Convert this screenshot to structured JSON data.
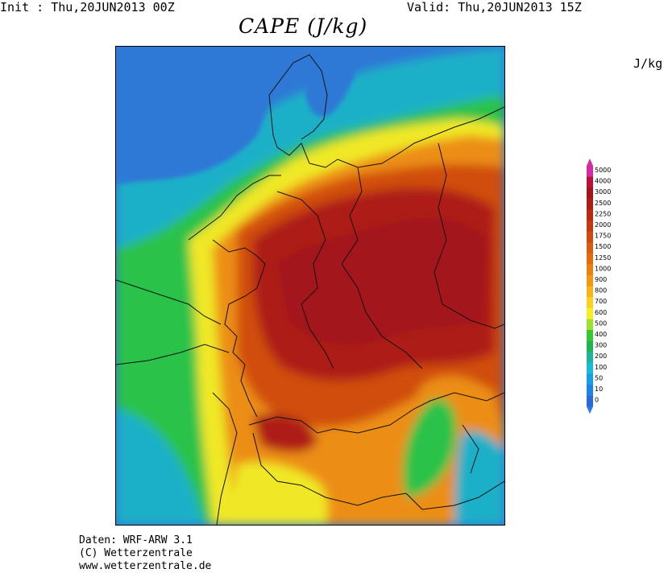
{
  "header": {
    "init": "Init : Thu,20JUN2013 00Z",
    "valid": "Valid: Thu,20JUN2013 15Z",
    "title": "CAPE (J/kg)"
  },
  "legend": {
    "unit": "J/kg",
    "levels": [
      "5000",
      "4000",
      "3000",
      "2500",
      "2250",
      "2000",
      "1750",
      "1500",
      "1250",
      "1000",
      "900",
      "800",
      "700",
      "600",
      "500",
      "400",
      "300",
      "200",
      "100",
      "50",
      "10",
      "0"
    ],
    "colors": [
      "#d62ba0",
      "#b8123c",
      "#a2151c",
      "#ad1d16",
      "#b92a12",
      "#c43a10",
      "#d04b10",
      "#d85d10",
      "#e06e10",
      "#e88212",
      "#f09a14",
      "#f6b41a",
      "#fbd020",
      "#f4ee26",
      "#9fe030",
      "#36c837",
      "#22b454",
      "#20b39a",
      "#18bcd6",
      "#1a9fe4",
      "#1e84e4",
      "#2a6ad8"
    ]
  },
  "footer": {
    "line1": "Daten: WRF-ARW 3.1",
    "line2": "(C) Wetterzentrale",
    "line3": "www.wetterzentrale.de"
  }
}
